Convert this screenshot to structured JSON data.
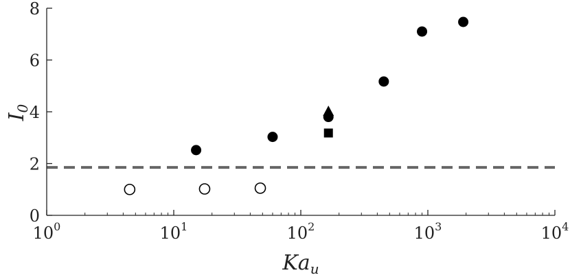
{
  "chart_data": {
    "type": "scatter",
    "title": "",
    "xlabel": "Ka",
    "xlabel_subscript": "u",
    "ylabel": "I",
    "ylabel_subscript": "0",
    "xscale": "log",
    "xlim": [
      1,
      10000
    ],
    "ylim": [
      0,
      8
    ],
    "grid": false,
    "x_tick_values": [
      1,
      10,
      100,
      1000,
      10000
    ],
    "x_tick_labels": [
      {
        "base": "10",
        "exp": "0"
      },
      {
        "base": "10",
        "exp": "1"
      },
      {
        "base": "10",
        "exp": "2"
      },
      {
        "base": "10",
        "exp": "3"
      },
      {
        "base": "10",
        "exp": "4"
      }
    ],
    "y_ticks": [
      0,
      2,
      4,
      6,
      8
    ],
    "reference_line": {
      "y": 1.85,
      "style": "dashed",
      "color": "#666666"
    },
    "series": [
      {
        "marker": "circle-open",
        "color": "#000000",
        "points": [
          {
            "x": 4.5,
            "y": 1.0
          },
          {
            "x": 17.5,
            "y": 1.02
          },
          {
            "x": 48,
            "y": 1.05
          }
        ]
      },
      {
        "marker": "circle-filled",
        "color": "#000000",
        "points": [
          {
            "x": 15,
            "y": 2.52
          },
          {
            "x": 60,
            "y": 3.03
          },
          {
            "x": 165,
            "y": 3.8
          },
          {
            "x": 450,
            "y": 5.17
          },
          {
            "x": 900,
            "y": 7.1
          },
          {
            "x": 1900,
            "y": 7.47
          }
        ]
      },
      {
        "marker": "square-filled",
        "color": "#000000",
        "points": [
          {
            "x": 165,
            "y": 3.18
          }
        ]
      },
      {
        "marker": "triangle-filled",
        "color": "#000000",
        "points": [
          {
            "x": 165,
            "y": 4.0
          }
        ]
      }
    ]
  }
}
